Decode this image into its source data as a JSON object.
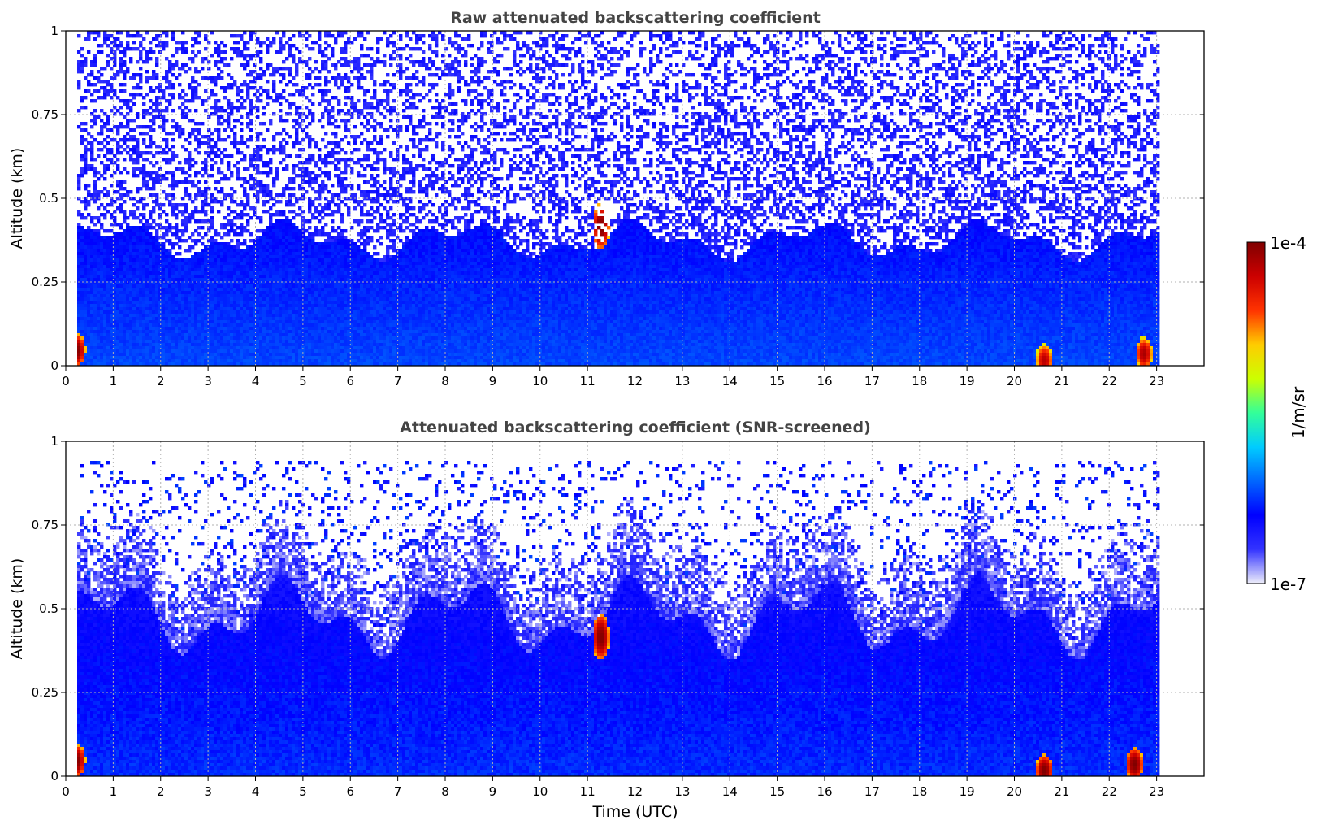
{
  "chart_data": [
    {
      "type": "heatmap",
      "title": "Raw attenuated backscattering coefficient",
      "xlabel": "",
      "ylabel": "Altitude (km)",
      "xlim": [
        0,
        24
      ],
      "ylim": [
        0,
        1
      ],
      "x_ticks": [
        "0",
        "1",
        "2",
        "3",
        "4",
        "5",
        "6",
        "7",
        "8",
        "9",
        "10",
        "11",
        "12",
        "13",
        "14",
        "15",
        "16",
        "17",
        "18",
        "19",
        "20",
        "21",
        "22",
        "23"
      ],
      "y_ticks": [
        "0",
        "0.25",
        "0.5",
        "0.75",
        "1"
      ],
      "grid": true,
      "data_end_hour": 23,
      "screened": false,
      "features": [
        {
          "x": 11.25,
          "y": 0.42,
          "value": 0.0001
        },
        {
          "x": 0.2,
          "y": 0.05,
          "value": 0.0001
        },
        {
          "x": 20.6,
          "y": 0.02,
          "value": 6e-05
        },
        {
          "x": 22.7,
          "y": 0.04,
          "value": 7e-05
        }
      ]
    },
    {
      "type": "heatmap",
      "title": "Attenuated backscattering coefficient (SNR-screened)",
      "xlabel": "Time (UTC)",
      "ylabel": "Altitude (km)",
      "xlim": [
        0,
        24
      ],
      "ylim": [
        0,
        1
      ],
      "x_ticks": [
        "0",
        "1",
        "2",
        "3",
        "4",
        "5",
        "6",
        "7",
        "8",
        "9",
        "10",
        "11",
        "12",
        "13",
        "14",
        "15",
        "16",
        "17",
        "18",
        "19",
        "20",
        "21",
        "22",
        "23"
      ],
      "y_ticks": [
        "0",
        "0.25",
        "0.5",
        "0.75",
        "1"
      ],
      "grid": true,
      "data_end_hour": 23,
      "screened": true,
      "features": [
        {
          "x": 11.25,
          "y": 0.42,
          "value": 0.0001
        },
        {
          "x": 0.2,
          "y": 0.05,
          "value": 0.0001
        },
        {
          "x": 20.6,
          "y": 0.02,
          "value": 0.0001
        },
        {
          "x": 22.5,
          "y": 0.04,
          "value": 0.0001
        }
      ]
    }
  ],
  "colorbar": {
    "label": "1/m/sr",
    "max_label": "1e-4",
    "min_label": "1e-7",
    "scale": "log",
    "range": [
      1e-07,
      0.0001
    ],
    "colormap": [
      "#eeeefa",
      "#3333ff",
      "#0000ff",
      "#0066ff",
      "#00ccff",
      "#33ff99",
      "#ccff00",
      "#ffcc00",
      "#ff3300",
      "#cc0000",
      "#800000"
    ]
  }
}
